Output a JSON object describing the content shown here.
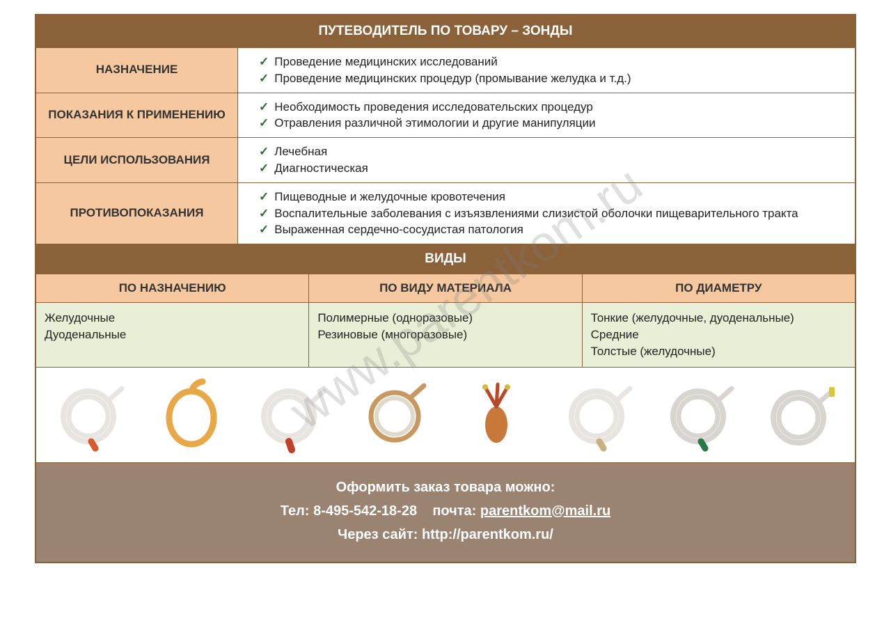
{
  "title": "ПУТЕВОДИТЕЛЬ ПО ТОВАРУ – ЗОНДЫ",
  "rows": [
    {
      "label": "НАЗНАЧЕНИЕ",
      "items": [
        "Проведение медицинских исследований",
        "Проведение медицинских процедур (промывание желудка и т.д.)"
      ]
    },
    {
      "label": "ПОКАЗАНИЯ К ПРИМЕНЕНИЮ",
      "items": [
        "Необходимость проведения исследовательских процедур",
        "Отравления различной этимологии и другие манипуляции"
      ]
    },
    {
      "label": "ЦЕЛИ ИСПОЛЬЗОВАНИЯ",
      "items": [
        "Лечебная",
        "Диагностическая"
      ]
    },
    {
      "label": "ПРОТИВОПОКАЗАНИЯ",
      "items": [
        "Пищеводные и желудочные кровотечения",
        "Воспалительные заболевания с изъязвлениями слизистой оболочки пищеварительного тракта",
        "Выраженная сердечно-сосудистая патология"
      ]
    }
  ],
  "types_title": "ВИДЫ",
  "types_headers": [
    "ПО НАЗНАЧЕНИЮ",
    "ПО ВИДУ МАТЕРИАЛА",
    "ПО ДИАМЕТРУ"
  ],
  "types_cells": [
    [
      "Желудочные",
      "Дуоденальные"
    ],
    [
      "Полимерные (одноразовые)",
      "Резиновые (многоразовые)"
    ],
    [
      "Тонкие (желудочные, дуоденальные)",
      "Средние",
      "Толстые (желудочные)"
    ]
  ],
  "probes": [
    {
      "coil": "#e8e5e0",
      "tip": "#d85a2a",
      "shape": "coil"
    },
    {
      "coil": "#e8a848",
      "tip": "#d08820",
      "shape": "loop"
    },
    {
      "coil": "#e8e5e0",
      "tip": "#c04028",
      "shape": "coil-tip"
    },
    {
      "coil": "#c89860",
      "tip": "#a07840",
      "shape": "double"
    },
    {
      "coil": "#c87838",
      "tip": "#b84828",
      "shape": "bulb"
    },
    {
      "coil": "#e8e5e0",
      "tip": "#c8b080",
      "shape": "coil"
    },
    {
      "coil": "#d8d5d0",
      "tip": "#287848",
      "shape": "coil"
    },
    {
      "coil": "#d8d5d0",
      "tip": "#d8c838",
      "shape": "coil-y"
    }
  ],
  "footer": {
    "order": "Оформить заказ товара можно:",
    "tel_label": "Тел:",
    "tel": "8-495-542-18-28",
    "mail_label": "почта:",
    "mail": "parentkom@mail.ru",
    "site_label": "Через сайт:",
    "site": "http://parentkom.ru/"
  },
  "watermark": "www.parentkom.ru",
  "colors": {
    "brown": "#8b6139",
    "peach": "#f5c89f",
    "green_bg": "#e8efd6",
    "footer_bg": "#9b8372"
  }
}
